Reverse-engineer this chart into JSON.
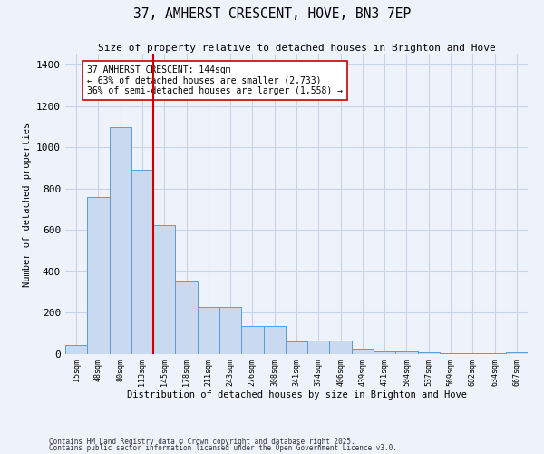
{
  "title": "37, AMHERST CRESCENT, HOVE, BN3 7EP",
  "subtitle": "Size of property relative to detached houses in Brighton and Hove",
  "xlabel": "Distribution of detached houses by size in Brighton and Hove",
  "ylabel": "Number of detached properties",
  "bins": [
    "15sqm",
    "48sqm",
    "80sqm",
    "113sqm",
    "145sqm",
    "178sqm",
    "211sqm",
    "243sqm",
    "276sqm",
    "308sqm",
    "341sqm",
    "374sqm",
    "406sqm",
    "439sqm",
    "471sqm",
    "504sqm",
    "537sqm",
    "569sqm",
    "602sqm",
    "634sqm",
    "667sqm"
  ],
  "values": [
    45,
    760,
    1100,
    890,
    625,
    350,
    230,
    230,
    135,
    135,
    60,
    65,
    65,
    25,
    15,
    15,
    10,
    5,
    5,
    5,
    10
  ],
  "bar_color": "#c9d9f0",
  "bar_edge_color": "#5b9bd5",
  "red_line_x": 4,
  "annotation_text": "37 AMHERST CRESCENT: 144sqm\n← 63% of detached houses are smaller (2,733)\n36% of semi-detached houses are larger (1,558) →",
  "annotation_box_color": "#ffffff",
  "annotation_box_edge": "#cc0000",
  "red_line_color": "#cc0000",
  "grid_color": "#c8d4e8",
  "bg_color": "#eef2fa",
  "ylim": [
    0,
    1450
  ],
  "yticks": [
    0,
    200,
    400,
    600,
    800,
    1000,
    1200,
    1400
  ],
  "footer1": "Contains HM Land Registry data © Crown copyright and database right 2025.",
  "footer2": "Contains public sector information licensed under the Open Government Licence v3.0."
}
